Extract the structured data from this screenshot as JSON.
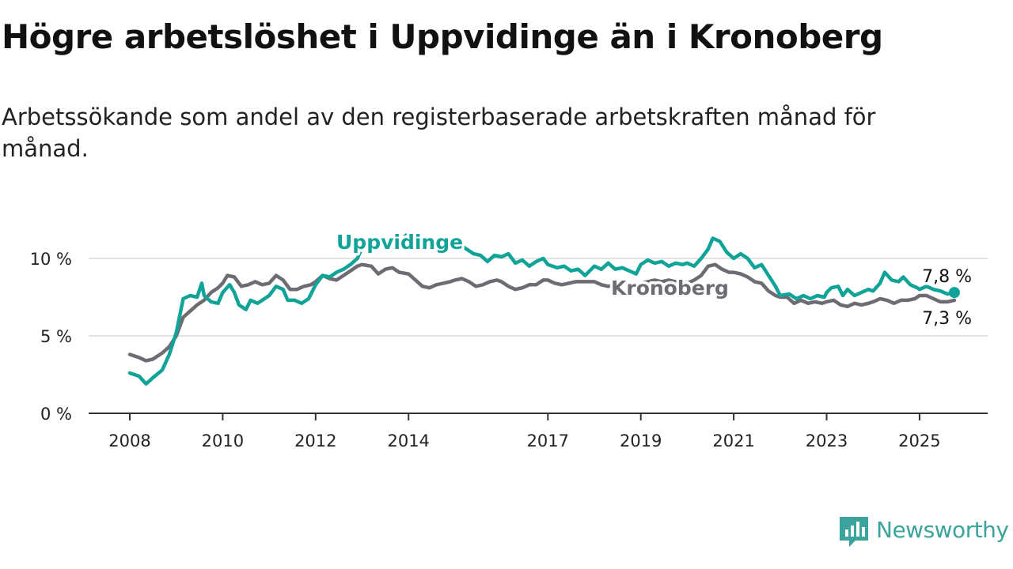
{
  "title": "Högre arbetslöshet i Uppvidinge än i Kronoberg",
  "subtitle": "Arbetssökande som andel av den registerbaserade arbetskraften månad för månad.",
  "logo": {
    "text": "Newsworthy",
    "icon": "chart-bubble-icon"
  },
  "colors": {
    "uppvidinge": "#10a398",
    "kronoberg": "#6e6b73",
    "grid": "#d9d9d9",
    "axis": "#333333"
  },
  "chart_data": {
    "type": "line",
    "title": "Högre arbetslöshet i Uppvidinge än i Kronoberg",
    "ylim": [
      0,
      10
    ],
    "xlim": [
      2008.0,
      2026.4
    ],
    "yticks": [
      {
        "value": 0,
        "label": "0 %"
      },
      {
        "value": 5,
        "label": "5 %"
      },
      {
        "value": 10,
        "label": "10 %"
      }
    ],
    "xticks": [
      {
        "value": 2008,
        "label": "2008"
      },
      {
        "value": 2010,
        "label": "2010"
      },
      {
        "value": 2012,
        "label": "2012"
      },
      {
        "value": 2014,
        "label": "2014"
      },
      {
        "value": 2017,
        "label": "2017"
      },
      {
        "value": 2019,
        "label": "2019"
      },
      {
        "value": 2021,
        "label": "2021"
      },
      {
        "value": 2023,
        "label": "2023"
      },
      {
        "value": 2025,
        "label": "2025"
      }
    ],
    "grid": true,
    "series": [
      {
        "name": "Uppvidinge",
        "end_label": "7,8 %",
        "points": [
          [
            2008.0,
            2.6
          ],
          [
            2008.2,
            2.4
          ],
          [
            2008.35,
            1.9
          ],
          [
            2008.5,
            2.3
          ],
          [
            2008.7,
            2.8
          ],
          [
            2008.85,
            3.8
          ],
          [
            2009.0,
            5.2
          ],
          [
            2009.15,
            7.4
          ],
          [
            2009.3,
            7.6
          ],
          [
            2009.45,
            7.5
          ],
          [
            2009.55,
            8.4
          ],
          [
            2009.6,
            7.6
          ],
          [
            2009.75,
            7.2
          ],
          [
            2009.9,
            7.1
          ],
          [
            2010.0,
            7.8
          ],
          [
            2010.15,
            8.3
          ],
          [
            2010.25,
            7.8
          ],
          [
            2010.35,
            7.0
          ],
          [
            2010.5,
            6.7
          ],
          [
            2010.6,
            7.3
          ],
          [
            2010.75,
            7.1
          ],
          [
            2010.9,
            7.4
          ],
          [
            2011.0,
            7.6
          ],
          [
            2011.15,
            8.2
          ],
          [
            2011.3,
            8.0
          ],
          [
            2011.4,
            7.3
          ],
          [
            2011.55,
            7.3
          ],
          [
            2011.7,
            7.1
          ],
          [
            2011.85,
            7.4
          ],
          [
            2012.0,
            8.3
          ],
          [
            2012.15,
            8.9
          ],
          [
            2012.3,
            8.8
          ],
          [
            2012.45,
            9.1
          ],
          [
            2012.6,
            9.3
          ],
          [
            2012.75,
            9.6
          ],
          [
            2012.9,
            10.0
          ],
          [
            2013.0,
            10.7
          ],
          [
            2013.2,
            11.3
          ],
          [
            2013.45,
            11.0
          ],
          [
            2013.6,
            11.2
          ],
          [
            2013.8,
            11.1
          ],
          [
            2013.95,
            11.5
          ],
          [
            2014.2,
            10.9
          ],
          [
            2014.4,
            11.1
          ],
          [
            2014.6,
            10.6
          ],
          [
            2014.8,
            10.8
          ],
          [
            2015.0,
            10.6
          ],
          [
            2015.2,
            10.7
          ],
          [
            2015.4,
            10.3
          ],
          [
            2015.55,
            10.2
          ],
          [
            2015.7,
            9.8
          ],
          [
            2015.85,
            10.2
          ],
          [
            2016.0,
            10.1
          ],
          [
            2016.15,
            10.3
          ],
          [
            2016.3,
            9.7
          ],
          [
            2016.45,
            9.9
          ],
          [
            2016.6,
            9.5
          ],
          [
            2016.75,
            9.8
          ],
          [
            2016.9,
            10.0
          ],
          [
            2017.0,
            9.6
          ],
          [
            2017.2,
            9.4
          ],
          [
            2017.35,
            9.5
          ],
          [
            2017.5,
            9.2
          ],
          [
            2017.65,
            9.3
          ],
          [
            2017.8,
            8.9
          ],
          [
            2018.0,
            9.5
          ],
          [
            2018.15,
            9.3
          ],
          [
            2018.3,
            9.7
          ],
          [
            2018.45,
            9.3
          ],
          [
            2018.6,
            9.4
          ],
          [
            2018.75,
            9.2
          ],
          [
            2018.9,
            9.0
          ],
          [
            2019.0,
            9.6
          ],
          [
            2019.15,
            9.9
          ],
          [
            2019.3,
            9.7
          ],
          [
            2019.45,
            9.8
          ],
          [
            2019.6,
            9.5
          ],
          [
            2019.75,
            9.7
          ],
          [
            2019.9,
            9.6
          ],
          [
            2020.0,
            9.7
          ],
          [
            2020.15,
            9.5
          ],
          [
            2020.3,
            10.0
          ],
          [
            2020.45,
            10.6
          ],
          [
            2020.55,
            11.3
          ],
          [
            2020.7,
            11.1
          ],
          [
            2020.85,
            10.4
          ],
          [
            2021.0,
            10.0
          ],
          [
            2021.15,
            10.3
          ],
          [
            2021.3,
            10.0
          ],
          [
            2021.45,
            9.4
          ],
          [
            2021.6,
            9.6
          ],
          [
            2021.75,
            8.9
          ],
          [
            2021.9,
            8.2
          ],
          [
            2022.0,
            7.6
          ],
          [
            2022.2,
            7.7
          ],
          [
            2022.35,
            7.4
          ],
          [
            2022.5,
            7.6
          ],
          [
            2022.65,
            7.4
          ],
          [
            2022.8,
            7.6
          ],
          [
            2022.95,
            7.5
          ],
          [
            2023.0,
            7.8
          ],
          [
            2023.1,
            8.1
          ],
          [
            2023.25,
            8.2
          ],
          [
            2023.35,
            7.6
          ],
          [
            2023.45,
            8.0
          ],
          [
            2023.6,
            7.6
          ],
          [
            2023.75,
            7.8
          ],
          [
            2023.9,
            8.0
          ],
          [
            2024.0,
            7.9
          ],
          [
            2024.15,
            8.4
          ],
          [
            2024.25,
            9.1
          ],
          [
            2024.4,
            8.6
          ],
          [
            2024.55,
            8.5
          ],
          [
            2024.65,
            8.8
          ],
          [
            2024.8,
            8.3
          ],
          [
            2024.95,
            8.1
          ],
          [
            2025.0,
            8.0
          ],
          [
            2025.15,
            8.2
          ],
          [
            2025.3,
            8.0
          ],
          [
            2025.45,
            7.9
          ],
          [
            2025.6,
            7.7
          ],
          [
            2025.75,
            7.8
          ]
        ]
      },
      {
        "name": "Kronoberg",
        "end_label": "7,3 %",
        "points": [
          [
            2008.0,
            3.8
          ],
          [
            2008.2,
            3.6
          ],
          [
            2008.35,
            3.4
          ],
          [
            2008.5,
            3.5
          ],
          [
            2008.7,
            3.9
          ],
          [
            2008.85,
            4.3
          ],
          [
            2009.0,
            5.0
          ],
          [
            2009.15,
            6.2
          ],
          [
            2009.3,
            6.6
          ],
          [
            2009.45,
            7.0
          ],
          [
            2009.6,
            7.3
          ],
          [
            2009.75,
            7.8
          ],
          [
            2009.9,
            8.1
          ],
          [
            2010.0,
            8.4
          ],
          [
            2010.1,
            8.9
          ],
          [
            2010.25,
            8.8
          ],
          [
            2010.4,
            8.2
          ],
          [
            2010.55,
            8.3
          ],
          [
            2010.7,
            8.5
          ],
          [
            2010.85,
            8.3
          ],
          [
            2011.0,
            8.4
          ],
          [
            2011.15,
            8.9
          ],
          [
            2011.3,
            8.6
          ],
          [
            2011.45,
            8.0
          ],
          [
            2011.6,
            8.0
          ],
          [
            2011.75,
            8.2
          ],
          [
            2011.9,
            8.3
          ],
          [
            2012.0,
            8.5
          ],
          [
            2012.15,
            8.9
          ],
          [
            2012.3,
            8.7
          ],
          [
            2012.45,
            8.6
          ],
          [
            2012.6,
            8.9
          ],
          [
            2012.75,
            9.2
          ],
          [
            2012.9,
            9.5
          ],
          [
            2013.0,
            9.6
          ],
          [
            2013.2,
            9.5
          ],
          [
            2013.35,
            9.0
          ],
          [
            2013.5,
            9.3
          ],
          [
            2013.65,
            9.4
          ],
          [
            2013.8,
            9.1
          ],
          [
            2014.0,
            9.0
          ],
          [
            2014.15,
            8.6
          ],
          [
            2014.3,
            8.2
          ],
          [
            2014.45,
            8.1
          ],
          [
            2014.6,
            8.3
          ],
          [
            2014.75,
            8.4
          ],
          [
            2014.9,
            8.5
          ],
          [
            2015.0,
            8.6
          ],
          [
            2015.15,
            8.7
          ],
          [
            2015.3,
            8.5
          ],
          [
            2015.45,
            8.2
          ],
          [
            2015.6,
            8.3
          ],
          [
            2015.75,
            8.5
          ],
          [
            2015.9,
            8.6
          ],
          [
            2016.0,
            8.5
          ],
          [
            2016.15,
            8.2
          ],
          [
            2016.3,
            8.0
          ],
          [
            2016.45,
            8.1
          ],
          [
            2016.6,
            8.3
          ],
          [
            2016.75,
            8.3
          ],
          [
            2016.9,
            8.6
          ],
          [
            2017.0,
            8.6
          ],
          [
            2017.15,
            8.4
          ],
          [
            2017.3,
            8.3
          ],
          [
            2017.45,
            8.4
          ],
          [
            2017.6,
            8.5
          ],
          [
            2017.75,
            8.5
          ],
          [
            2017.9,
            8.5
          ],
          [
            2018.0,
            8.5
          ],
          [
            2018.15,
            8.3
          ],
          [
            2018.3,
            8.2
          ],
          [
            2018.45,
            8.3
          ],
          [
            2018.6,
            8.4
          ],
          [
            2018.75,
            8.3
          ],
          [
            2018.9,
            8.3
          ],
          [
            2019.0,
            8.4
          ],
          [
            2019.15,
            8.5
          ],
          [
            2019.3,
            8.6
          ],
          [
            2019.45,
            8.5
          ],
          [
            2019.6,
            8.6
          ],
          [
            2019.75,
            8.5
          ],
          [
            2019.9,
            8.5
          ],
          [
            2020.0,
            8.4
          ],
          [
            2020.15,
            8.6
          ],
          [
            2020.3,
            8.9
          ],
          [
            2020.45,
            9.5
          ],
          [
            2020.6,
            9.6
          ],
          [
            2020.75,
            9.3
          ],
          [
            2020.9,
            9.1
          ],
          [
            2021.0,
            9.1
          ],
          [
            2021.15,
            9.0
          ],
          [
            2021.3,
            8.8
          ],
          [
            2021.45,
            8.5
          ],
          [
            2021.6,
            8.4
          ],
          [
            2021.75,
            7.9
          ],
          [
            2021.9,
            7.6
          ],
          [
            2022.0,
            7.5
          ],
          [
            2022.15,
            7.5
          ],
          [
            2022.3,
            7.1
          ],
          [
            2022.45,
            7.3
          ],
          [
            2022.6,
            7.1
          ],
          [
            2022.75,
            7.2
          ],
          [
            2022.9,
            7.1
          ],
          [
            2023.0,
            7.2
          ],
          [
            2023.15,
            7.3
          ],
          [
            2023.3,
            7.0
          ],
          [
            2023.45,
            6.9
          ],
          [
            2023.6,
            7.1
          ],
          [
            2023.75,
            7.0
          ],
          [
            2023.9,
            7.1
          ],
          [
            2024.0,
            7.2
          ],
          [
            2024.15,
            7.4
          ],
          [
            2024.3,
            7.3
          ],
          [
            2024.45,
            7.1
          ],
          [
            2024.6,
            7.3
          ],
          [
            2024.75,
            7.3
          ],
          [
            2024.9,
            7.4
          ],
          [
            2025.0,
            7.6
          ],
          [
            2025.15,
            7.6
          ],
          [
            2025.3,
            7.4
          ],
          [
            2025.45,
            7.2
          ],
          [
            2025.6,
            7.2
          ],
          [
            2025.75,
            7.3
          ]
        ]
      }
    ]
  }
}
